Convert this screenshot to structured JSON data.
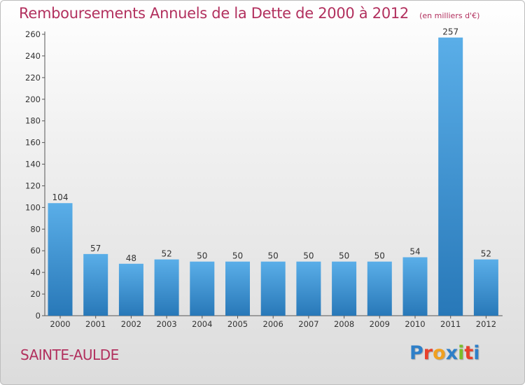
{
  "header": {
    "title": "Remboursements Annuels de la Dette de 2000 à 2012",
    "unit": "(en milliers d'€)"
  },
  "footer": {
    "commune": "SAINTE-AULDE",
    "logo_text": "Proxiti"
  },
  "colors": {
    "accent": "#b2305e",
    "bar_top": "#5aaee8",
    "bar_bottom": "#2878b8",
    "logo": [
      "#2e7fc8",
      "#e8412b",
      "#f0a020",
      "#2e7fc8",
      "#7cbd2a",
      "#e8412b",
      "#2e7fc8"
    ]
  },
  "chart_data": {
    "type": "bar",
    "categories": [
      "2000",
      "2001",
      "2002",
      "2003",
      "2004",
      "2005",
      "2006",
      "2007",
      "2008",
      "2009",
      "2010",
      "2011",
      "2012"
    ],
    "values": [
      104,
      57,
      48,
      52,
      50,
      50,
      50,
      50,
      50,
      50,
      54,
      257,
      52
    ],
    "ylim": [
      0,
      260
    ],
    "yticks": [
      0,
      20,
      40,
      60,
      80,
      100,
      120,
      140,
      160,
      180,
      200,
      220,
      240,
      260
    ],
    "grid": false,
    "legend": "none"
  }
}
